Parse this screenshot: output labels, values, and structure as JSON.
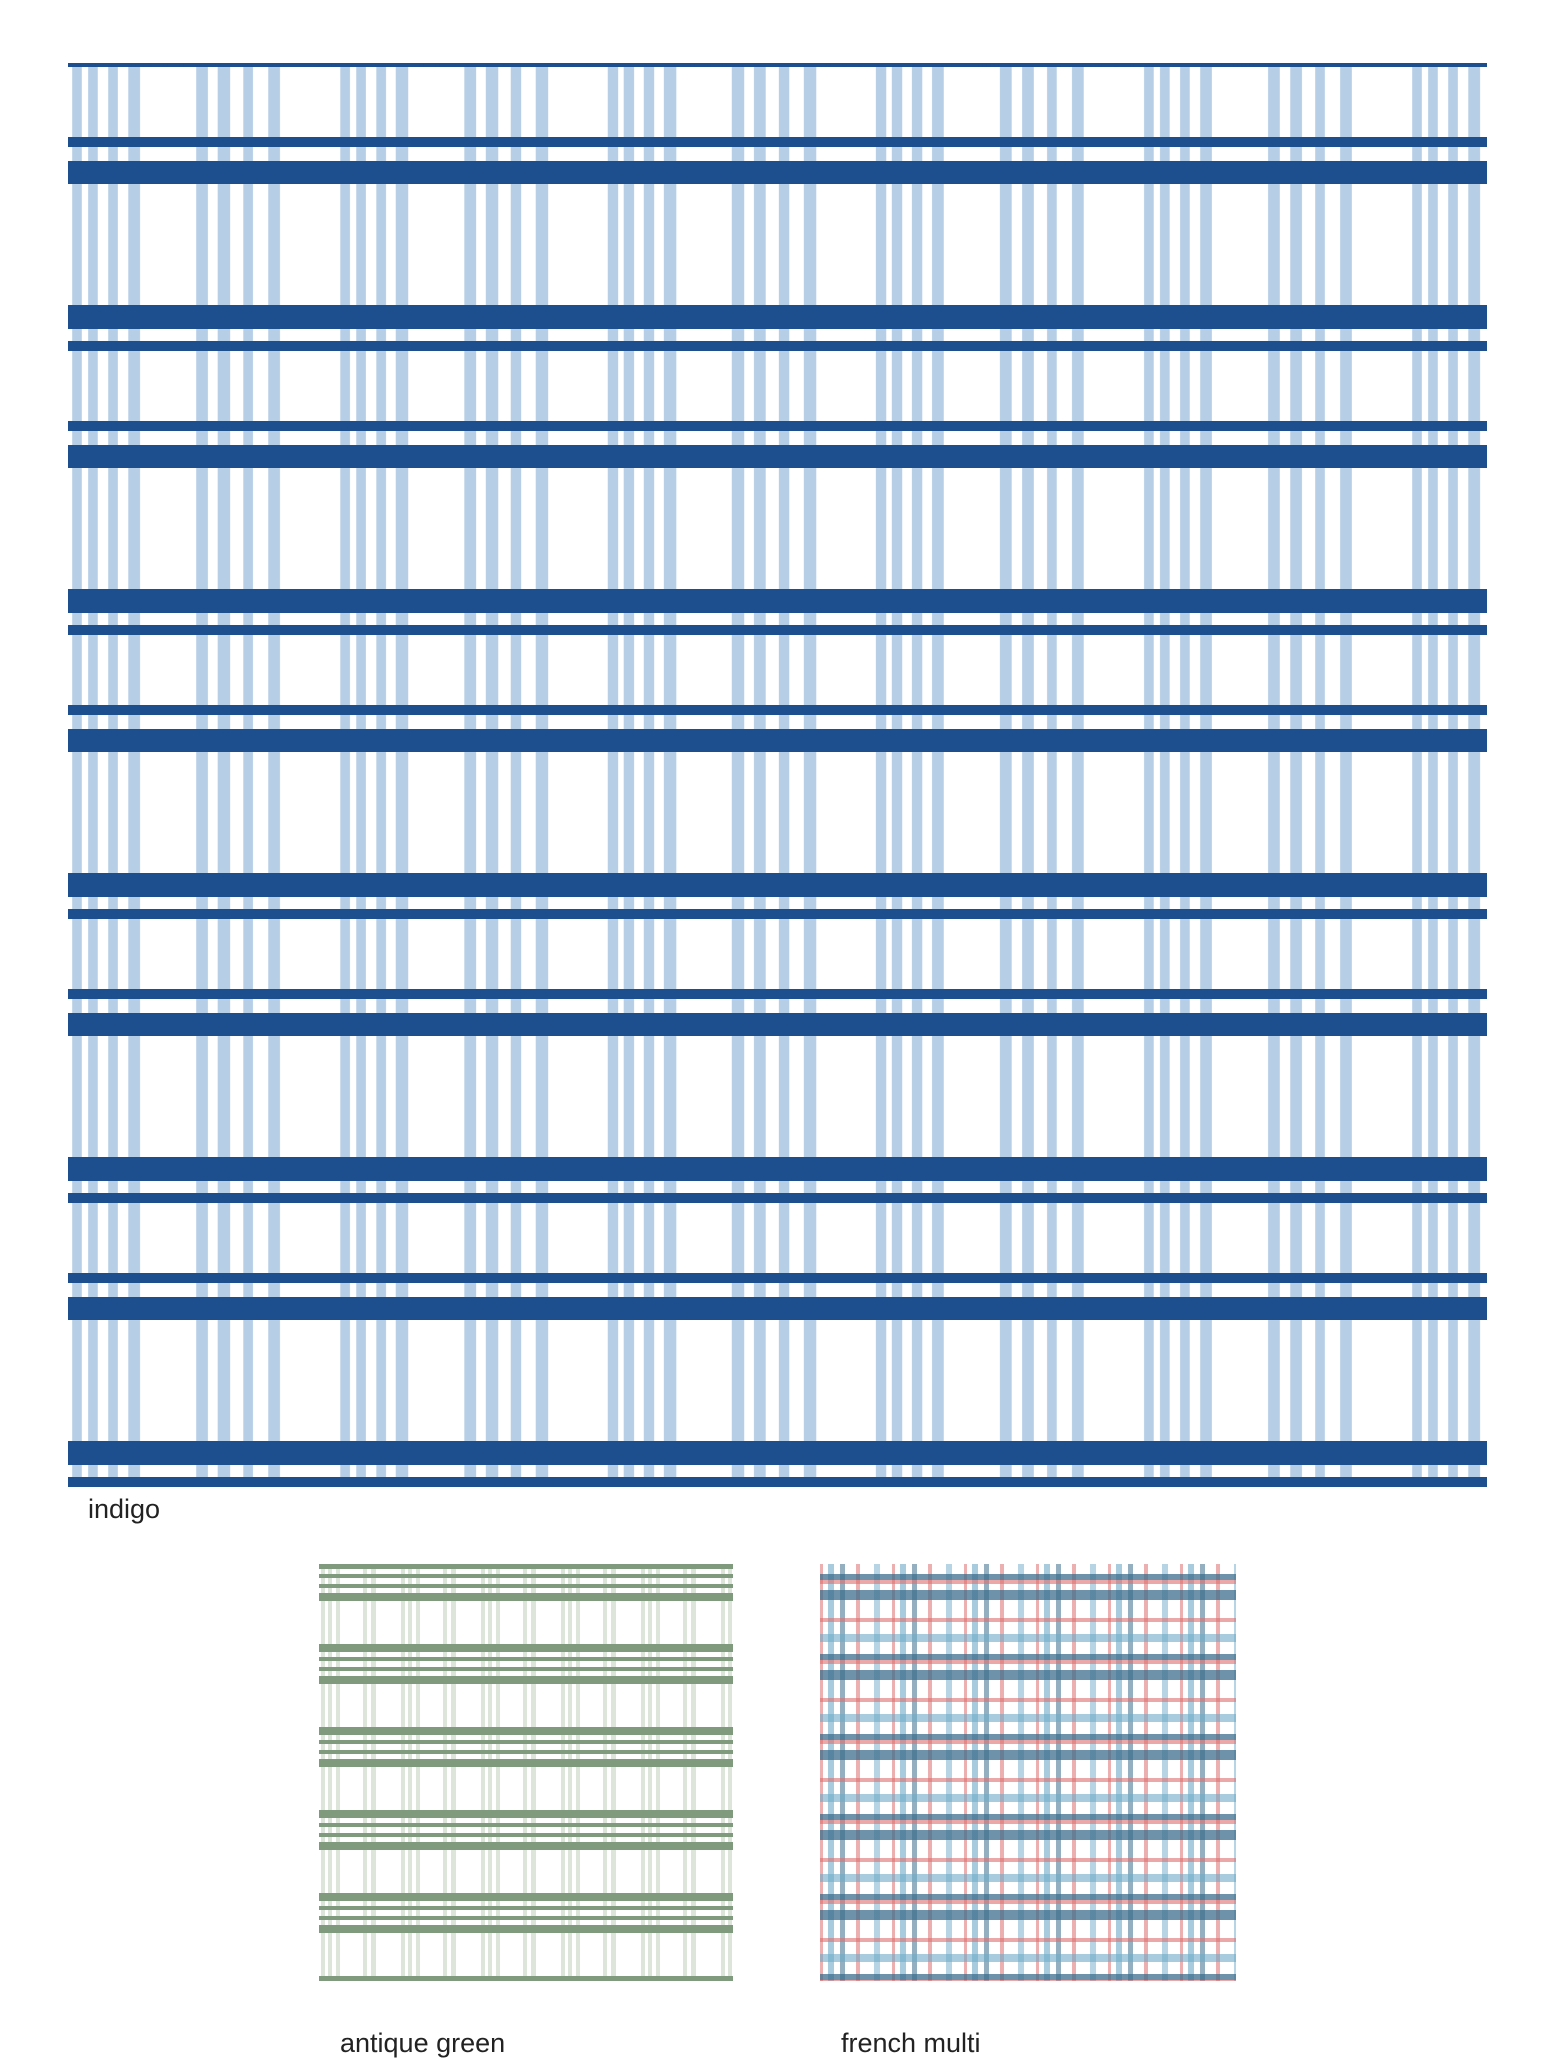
{
  "swatches": [
    {
      "label": "indigo"
    },
    {
      "label": "antique green"
    },
    {
      "label": "french multi"
    }
  ]
}
